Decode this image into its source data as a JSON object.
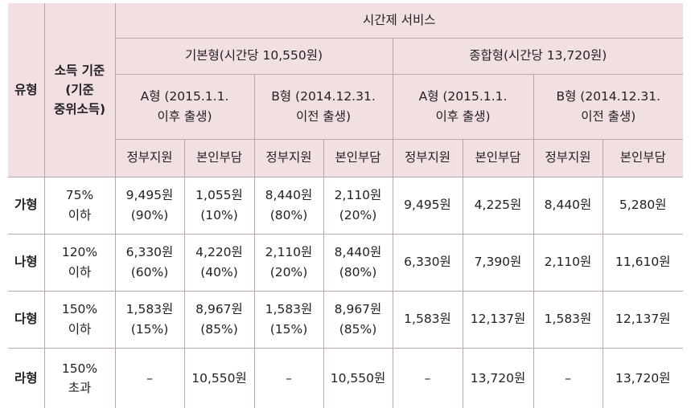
{
  "header": {
    "type": "유형",
    "income_line1": "소득 기준",
    "income_line2": "(기준",
    "income_line3": "중위소득)",
    "service": "시간제 서비스",
    "basic": "기본형(시간당 10,550원)",
    "comprehensive": "종합형(시간당 13,720원)",
    "typeA_line1": "A형 (2015.1.1.",
    "typeA_line2": "이후 출생)",
    "typeB_line1": "B형 (2014.12.31.",
    "typeB_line2": "이전 출생)",
    "gov": "정부지원",
    "self": "본인부담"
  },
  "rows": [
    {
      "type": "가형",
      "income": [
        "75%",
        "이하"
      ],
      "cells": [
        [
          "9,495원",
          "(90%)"
        ],
        [
          "1,055원",
          "(10%)"
        ],
        [
          "8,440원",
          "(80%)"
        ],
        [
          "2,110원",
          "(20%)"
        ],
        [
          "9,495원"
        ],
        [
          "4,225원"
        ],
        [
          "8,440원"
        ],
        [
          "5,280원"
        ]
      ]
    },
    {
      "type": "나형",
      "income": [
        "120%",
        "이하"
      ],
      "cells": [
        [
          "6,330원",
          "(60%)"
        ],
        [
          "4,220원",
          "(40%)"
        ],
        [
          "2,110원",
          "(20%)"
        ],
        [
          "8,440원",
          "(80%)"
        ],
        [
          "6,330원"
        ],
        [
          "7,390원"
        ],
        [
          "2,110원"
        ],
        [
          "11,610원"
        ]
      ]
    },
    {
      "type": "다형",
      "income": [
        "150%",
        "이하"
      ],
      "cells": [
        [
          "1,583원",
          "(15%)"
        ],
        [
          "8,967원",
          "(85%)"
        ],
        [
          "1,583원",
          "(15%)"
        ],
        [
          "8,967원",
          "(85%)"
        ],
        [
          "1,583원"
        ],
        [
          "12,137원"
        ],
        [
          "1,583원"
        ],
        [
          "12,137원"
        ]
      ]
    },
    {
      "type": "라형",
      "income": [
        "150%",
        "초과"
      ],
      "cells": [
        [
          "–"
        ],
        [
          "10,550원"
        ],
        [
          "–"
        ],
        [
          "10,550원"
        ],
        [
          "–"
        ],
        [
          "13,720원"
        ],
        [
          "–"
        ],
        [
          "13,720원"
        ]
      ]
    }
  ]
}
